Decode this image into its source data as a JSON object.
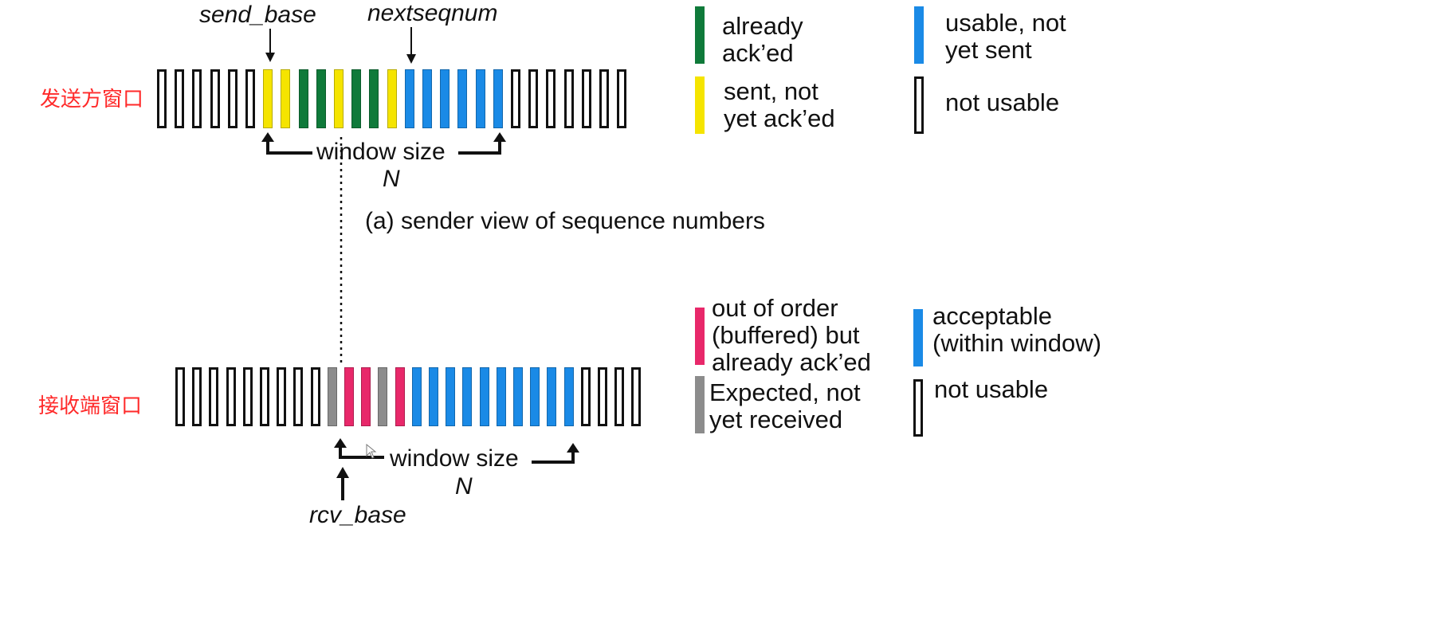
{
  "sender": {
    "side_label": "发送方窗口",
    "send_base_label": "send_base",
    "nextseqnum_label": "nextseqnum",
    "window_label": "window size",
    "window_n": "N",
    "caption": "(a) sender view of sequence numbers",
    "slots": [
      "u",
      "u",
      "u",
      "u",
      "u",
      "u",
      "y",
      "y",
      "g",
      "g",
      "y",
      "g",
      "g",
      "y",
      "b",
      "b",
      "b",
      "b",
      "b",
      "b",
      "u",
      "u",
      "u",
      "u",
      "u",
      "u",
      "u"
    ]
  },
  "receiver": {
    "side_label": "接收端窗口",
    "rcv_base_label": "rcv_base",
    "window_label": "window size",
    "window_n": "N",
    "slots": [
      "u",
      "u",
      "u",
      "u",
      "u",
      "u",
      "u",
      "u",
      "u",
      "x",
      "p",
      "p",
      "x",
      "p",
      "b",
      "b",
      "b",
      "b",
      "b",
      "b",
      "b",
      "b",
      "b",
      "b",
      "u",
      "u",
      "u",
      "u"
    ]
  },
  "legend_sender": [
    {
      "color": "#0f7a3a",
      "text": "already\nack’ed"
    },
    {
      "color": "#1a8ae6",
      "text": "usable, not\nyet sent"
    },
    {
      "color": "#f5e400",
      "text": "sent, not\nyet ack’ed"
    },
    {
      "color": "none",
      "text": "not usable"
    }
  ],
  "legend_receiver": [
    {
      "color": "#e8286a",
      "text": "out of order\n(buffered) but\nalready ack’ed"
    },
    {
      "color": "#1a8ae6",
      "text": "acceptable\n(within window)"
    },
    {
      "color": "#8c8c8c",
      "text": "Expected, not\nyet received"
    },
    {
      "color": "none",
      "text": "not usable"
    }
  ],
  "colors": {
    "g": "#0f7a3a",
    "y": "#f5e400",
    "b": "#1a8ae6",
    "p": "#e8286a",
    "x": "#8c8c8c",
    "u": "none",
    "accent_label": "#ff2a2a"
  }
}
